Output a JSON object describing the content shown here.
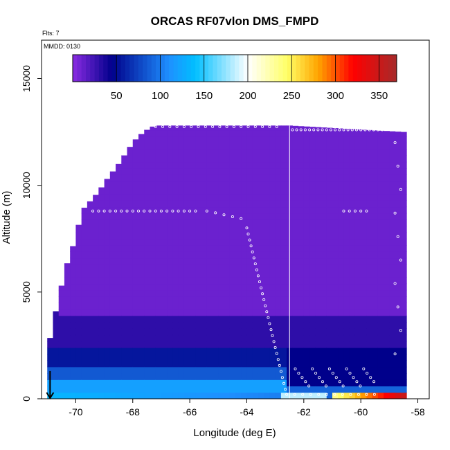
{
  "chart_data": {
    "type": "heatmap",
    "title": "ORCAS RF07vlon DMS_FMPD",
    "flights_note": "Flts: 7",
    "date_note": "MMDD: 0130",
    "xlabel": "Longitude (deg E)",
    "ylabel": "Altitude (m)",
    "xlim": [
      -71.2,
      -57.6
    ],
    "ylim": [
      0,
      16800
    ],
    "xticks": [
      -70,
      -68,
      -66,
      -64,
      -62,
      -60,
      -58
    ],
    "yticks": [
      0,
      5000,
      10000,
      15000
    ],
    "colorbar": {
      "range": [
        0,
        370
      ],
      "ticks": [
        50,
        100,
        150,
        200,
        250,
        300,
        350
      ],
      "colors": [
        "#8a2be2",
        "#00008b",
        "#1e90ff",
        "#00bfff",
        "#ffffff",
        "#ffff66",
        "#ffa500",
        "#ff0000",
        "#a52a2a"
      ]
    },
    "top_altitude_envelope": {
      "lon": [
        -71.0,
        -70.8,
        -70.6,
        -70.4,
        -70.2,
        -70.0,
        -69.8,
        -69.6,
        -69.4,
        -69.2,
        -69.0,
        -68.8,
        -68.6,
        -68.4,
        -68.2,
        -68.0,
        -67.8,
        -67.6,
        -67.4,
        -67.2,
        -67.0,
        -62.5,
        -58.5,
        -58.3
      ],
      "alt": [
        2200,
        3500,
        4700,
        5900,
        6800,
        7500,
        8800,
        9100,
        9400,
        9700,
        10100,
        10500,
        10800,
        11200,
        11600,
        12000,
        12300,
        12500,
        12700,
        12800,
        12800,
        12800,
        12500,
        10300
      ]
    },
    "features": {
      "vertical_line_lon": -62.5,
      "arrow_lon": -70.9,
      "peak_lon_range": [
        -61.0,
        -58.4
      ],
      "peak_value": 355
    }
  }
}
